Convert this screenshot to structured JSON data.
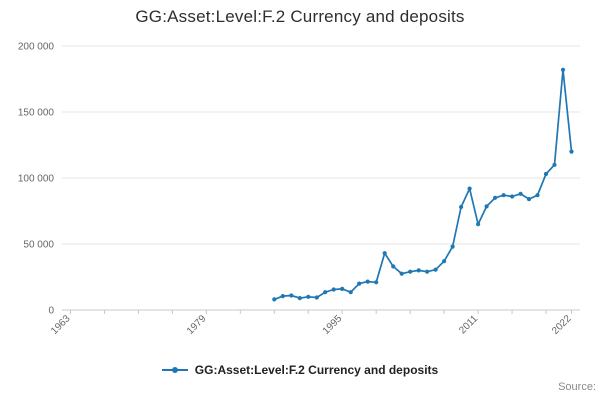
{
  "title": "GG:Asset:Level:F.2 Currency and deposits",
  "legend": {
    "label": "GG:Asset:Level:F.2 Currency and deposits"
  },
  "source_label": "Source:",
  "colors": {
    "line": "#1f77b4",
    "grid": "#e6e6e6",
    "axis": "#c8c8c8",
    "tick_text": "#666666",
    "title_text": "#2e2e2e",
    "source_text": "#8a8a8a"
  },
  "chart_data": {
    "type": "line",
    "title": "GG:Asset:Level:F.2 Currency and deposits",
    "xlabel": "",
    "ylabel": "",
    "xlim": [
      1962,
      2023
    ],
    "ylim": [
      0,
      200000
    ],
    "grid": true,
    "legend_position": "bottom",
    "x_ticks": [
      1963,
      1979,
      1995,
      2011,
      2022
    ],
    "x_minor_step": 4,
    "y_ticks": [
      {
        "value": 0,
        "label": "0"
      },
      {
        "value": 50000,
        "label": "50 000"
      },
      {
        "value": 100000,
        "label": "100 000"
      },
      {
        "value": 150000,
        "label": "150 000"
      },
      {
        "value": 200000,
        "label": "200 000"
      }
    ],
    "series": [
      {
        "name": "GG:Asset:Level:F.2 Currency and deposits",
        "color": "#1f77b4",
        "x": [
          1987,
          1988,
          1989,
          1990,
          1991,
          1992,
          1993,
          1994,
          1995,
          1996,
          1997,
          1998,
          1999,
          2000,
          2001,
          2002,
          2003,
          2004,
          2005,
          2006,
          2007,
          2008,
          2009,
          2010,
          2011,
          2012,
          2013,
          2014,
          2015,
          2016,
          2017,
          2018,
          2019,
          2020,
          2021,
          2022
        ],
        "values": [
          8000,
          10500,
          11000,
          9000,
          10000,
          9500,
          13500,
          15500,
          16000,
          13500,
          20000,
          21500,
          21000,
          43000,
          33000,
          27500,
          29000,
          30000,
          29000,
          30500,
          37000,
          48000,
          78000,
          92000,
          65000,
          78500,
          85000,
          87000,
          86000,
          88000,
          84000,
          87000,
          103000,
          110000,
          182000,
          120000
        ]
      }
    ]
  }
}
